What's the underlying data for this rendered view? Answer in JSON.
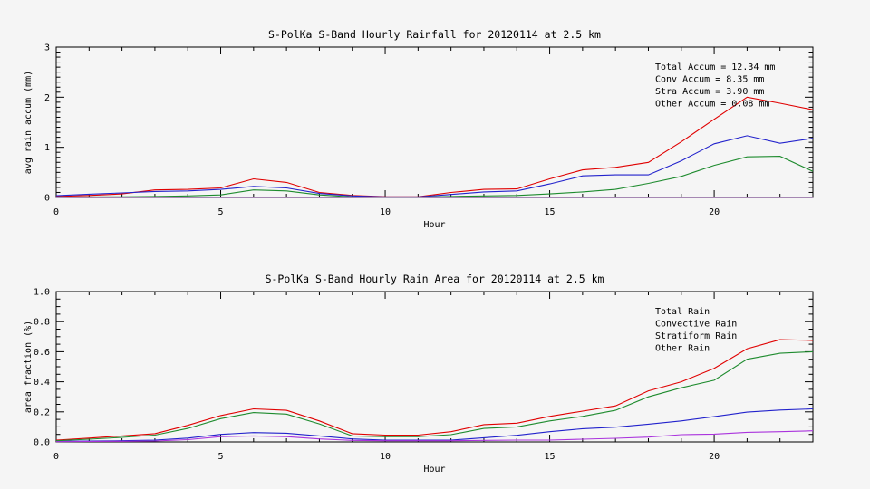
{
  "page": {
    "background": "#f5f5f5",
    "frame_color": "#000000"
  },
  "chart_data": [
    {
      "type": "line",
      "title": "S-PolKa S-Band Hourly Rainfall for 20120114 at 2.5 km",
      "xlabel": "Hour",
      "ylabel": "avg rain accum (mm)",
      "xlim": [
        0,
        23
      ],
      "ylim": [
        0,
        3
      ],
      "xticks": [
        0,
        5,
        10,
        15,
        20
      ],
      "xtick_labels": [
        "0",
        "5",
        "10",
        "15",
        "20"
      ],
      "xminor_step": 1,
      "yticks": [
        0,
        1,
        2,
        3
      ],
      "ytick_labels": [
        "0",
        "1",
        "2",
        "3"
      ],
      "yminor_step": 0.1,
      "grid": false,
      "legend_position": "top-right",
      "x": [
        0,
        1,
        2,
        3,
        4,
        5,
        6,
        7,
        8,
        9,
        10,
        11,
        12,
        13,
        14,
        15,
        16,
        17,
        18,
        19,
        20,
        21,
        22,
        23
      ],
      "series": [
        {
          "name": "Total Accum",
          "color": "#e00000",
          "values": [
            0.02,
            0.04,
            0.07,
            0.15,
            0.16,
            0.19,
            0.37,
            0.3,
            0.1,
            0.04,
            0.015,
            0.012,
            0.1,
            0.16,
            0.17,
            0.37,
            0.55,
            0.6,
            0.7,
            1.11,
            1.56,
            2.0,
            1.88,
            1.75
          ]
        },
        {
          "name": "Conv Accum",
          "color": "#2222cc",
          "values": [
            0.035,
            0.065,
            0.09,
            0.12,
            0.13,
            0.16,
            0.22,
            0.19,
            0.08,
            0.03,
            0.01,
            0.01,
            0.06,
            0.11,
            0.13,
            0.27,
            0.43,
            0.45,
            0.45,
            0.73,
            1.07,
            1.23,
            1.08,
            1.18
          ]
        },
        {
          "name": "Stra Accum",
          "color": "#1e8b2e",
          "values": [
            0.005,
            0.01,
            0.012,
            0.02,
            0.03,
            0.05,
            0.15,
            0.13,
            0.05,
            0.01,
            0.005,
            0.005,
            0.02,
            0.03,
            0.04,
            0.07,
            0.11,
            0.16,
            0.28,
            0.42,
            0.64,
            0.81,
            0.82,
            0.52
          ]
        },
        {
          "name": "Other Accum",
          "color": "#aa33dd",
          "values": [
            0.005,
            0.005,
            0.005,
            0.005,
            0.005,
            0.005,
            0.005,
            0.005,
            0.005,
            0.005,
            0.005,
            0.005,
            0.005,
            0.005,
            0.005,
            0.005,
            0.005,
            0.005,
            0.005,
            0.005,
            0.005,
            0.005,
            0.005,
            0.005
          ]
        }
      ],
      "legend": [
        {
          "label": "Total Accum = 12.34 mm",
          "color": "#e00000"
        },
        {
          "label": "Conv Accum = 8.35 mm",
          "color": "#2222cc"
        },
        {
          "label": "Stra Accum = 3.90 mm",
          "color": "#1e8b2e"
        },
        {
          "label": "Other Accum = 0.08 mm",
          "color": "#aa33dd"
        }
      ]
    },
    {
      "type": "line",
      "title": "S-PolKa S-Band Hourly Rain Area for 20120114 at 2.5 km",
      "xlabel": "Hour",
      "ylabel": "area fraction (%)",
      "xlim": [
        0,
        23
      ],
      "ylim": [
        0,
        1.0
      ],
      "xticks": [
        0,
        5,
        10,
        15,
        20
      ],
      "xtick_labels": [
        "0",
        "5",
        "10",
        "15",
        "20"
      ],
      "xminor_step": 1,
      "yticks": [
        0,
        0.2,
        0.4,
        0.6,
        0.8,
        1.0
      ],
      "ytick_labels": [
        "0.0",
        "0.2",
        "0.4",
        "0.6",
        "0.8",
        "1.0"
      ],
      "yminor_step": 0.05,
      "grid": false,
      "legend_position": "top-right",
      "x": [
        0,
        1,
        2,
        3,
        4,
        5,
        6,
        7,
        8,
        9,
        10,
        11,
        12,
        13,
        14,
        15,
        16,
        17,
        18,
        19,
        20,
        21,
        22,
        23
      ],
      "series": [
        {
          "name": "Total Rain",
          "color": "#e00000",
          "values": [
            0.012,
            0.025,
            0.04,
            0.055,
            0.11,
            0.175,
            0.22,
            0.21,
            0.14,
            0.055,
            0.045,
            0.045,
            0.068,
            0.115,
            0.125,
            0.17,
            0.205,
            0.24,
            0.34,
            0.4,
            0.49,
            0.62,
            0.68,
            0.675
          ]
        },
        {
          "name": "Convective Rain",
          "color": "#2222cc",
          "values": [
            0.004,
            0.006,
            0.008,
            0.012,
            0.025,
            0.05,
            0.062,
            0.058,
            0.04,
            0.02,
            0.012,
            0.012,
            0.012,
            0.028,
            0.044,
            0.068,
            0.088,
            0.098,
            0.118,
            0.14,
            0.168,
            0.198,
            0.212,
            0.22
          ]
        },
        {
          "name": "Stratiform Rain",
          "color": "#1e8b2e",
          "values": [
            0.008,
            0.018,
            0.03,
            0.045,
            0.09,
            0.155,
            0.195,
            0.185,
            0.12,
            0.04,
            0.035,
            0.035,
            0.048,
            0.09,
            0.1,
            0.14,
            0.17,
            0.21,
            0.3,
            0.36,
            0.41,
            0.55,
            0.59,
            0.6
          ]
        },
        {
          "name": "Other Rain",
          "color": "#aa33dd",
          "values": [
            0.002,
            0.003,
            0.004,
            0.006,
            0.015,
            0.035,
            0.04,
            0.035,
            0.02,
            0.01,
            0.008,
            0.008,
            0.008,
            0.01,
            0.012,
            0.012,
            0.018,
            0.024,
            0.032,
            0.048,
            0.052,
            0.064,
            0.068,
            0.074
          ]
        }
      ],
      "legend": [
        {
          "label": "Total Rain",
          "color": "#e00000"
        },
        {
          "label": "Convective Rain",
          "color": "#2222cc"
        },
        {
          "label": "Stratiform Rain",
          "color": "#1e8b2e"
        },
        {
          "label": "Other Rain",
          "color": "#aa33dd"
        }
      ]
    }
  ]
}
